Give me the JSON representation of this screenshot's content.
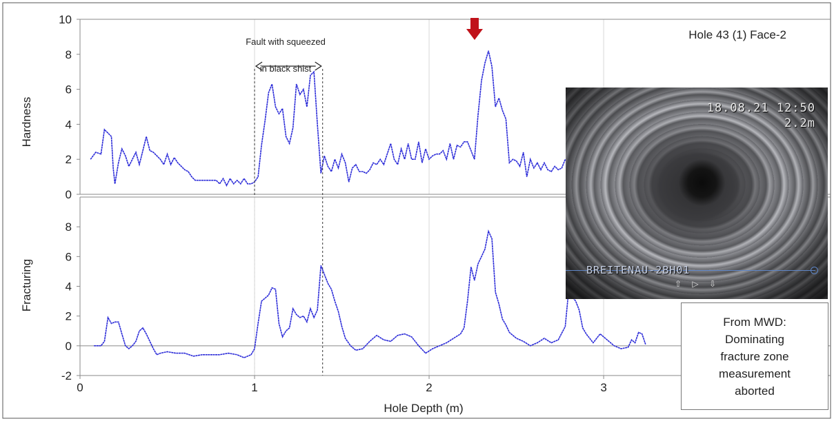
{
  "chart_data": [
    {
      "type": "line",
      "ylabel": "Hardness",
      "ylim": [
        0,
        10
      ],
      "yticks": [
        0,
        2,
        4,
        6,
        8,
        10
      ],
      "annotation_title": "Hole 43 (1) Face-2",
      "fault_label_line1": "Fault with squeezed",
      "fault_label_line2": "in black shist",
      "fault_range": [
        1.0,
        1.39
      ],
      "arrow_marker_x": 2.26,
      "series": [
        {
          "color": "#2a2ad8",
          "points": [
            [
              0.06,
              2.0
            ],
            [
              0.09,
              2.4
            ],
            [
              0.12,
              2.3
            ],
            [
              0.14,
              3.7
            ],
            [
              0.16,
              3.5
            ],
            [
              0.18,
              3.3
            ],
            [
              0.19,
              1.5
            ],
            [
              0.2,
              0.6
            ],
            [
              0.22,
              1.8
            ],
            [
              0.24,
              2.6
            ],
            [
              0.26,
              2.2
            ],
            [
              0.28,
              1.6
            ],
            [
              0.3,
              2.0
            ],
            [
              0.32,
              2.4
            ],
            [
              0.34,
              1.7
            ],
            [
              0.36,
              2.5
            ],
            [
              0.38,
              3.3
            ],
            [
              0.4,
              2.5
            ],
            [
              0.42,
              2.4
            ],
            [
              0.44,
              2.2
            ],
            [
              0.46,
              2.0
            ],
            [
              0.48,
              1.7
            ],
            [
              0.5,
              2.3
            ],
            [
              0.52,
              1.7
            ],
            [
              0.54,
              2.1
            ],
            [
              0.56,
              1.8
            ],
            [
              0.58,
              1.6
            ],
            [
              0.6,
              1.4
            ],
            [
              0.62,
              1.3
            ],
            [
              0.64,
              1.0
            ],
            [
              0.66,
              0.8
            ],
            [
              0.7,
              0.8
            ],
            [
              0.74,
              0.8
            ],
            [
              0.78,
              0.8
            ],
            [
              0.8,
              0.6
            ],
            [
              0.82,
              0.9
            ],
            [
              0.84,
              0.5
            ],
            [
              0.86,
              0.9
            ],
            [
              0.88,
              0.6
            ],
            [
              0.9,
              0.8
            ],
            [
              0.92,
              0.6
            ],
            [
              0.94,
              0.9
            ],
            [
              0.96,
              0.6
            ],
            [
              0.98,
              0.6
            ],
            [
              1.0,
              0.7
            ],
            [
              1.02,
              1.0
            ],
            [
              1.04,
              2.8
            ],
            [
              1.06,
              4.2
            ],
            [
              1.08,
              5.8
            ],
            [
              1.1,
              6.3
            ],
            [
              1.12,
              5.0
            ],
            [
              1.14,
              4.6
            ],
            [
              1.16,
              4.9
            ],
            [
              1.18,
              3.3
            ],
            [
              1.2,
              2.9
            ],
            [
              1.22,
              3.8
            ],
            [
              1.24,
              6.3
            ],
            [
              1.26,
              5.7
            ],
            [
              1.28,
              6.0
            ],
            [
              1.3,
              5.0
            ],
            [
              1.32,
              6.8
            ],
            [
              1.34,
              7.0
            ],
            [
              1.36,
              4.0
            ],
            [
              1.38,
              1.2
            ],
            [
              1.4,
              2.2
            ],
            [
              1.42,
              1.6
            ],
            [
              1.44,
              1.3
            ],
            [
              1.46,
              2.0
            ],
            [
              1.48,
              1.5
            ],
            [
              1.5,
              2.3
            ],
            [
              1.52,
              1.8
            ],
            [
              1.54,
              0.7
            ],
            [
              1.56,
              1.5
            ],
            [
              1.58,
              1.7
            ],
            [
              1.6,
              1.3
            ],
            [
              1.62,
              1.3
            ],
            [
              1.64,
              1.2
            ],
            [
              1.66,
              1.4
            ],
            [
              1.68,
              1.8
            ],
            [
              1.7,
              1.7
            ],
            [
              1.72,
              2.0
            ],
            [
              1.74,
              1.7
            ],
            [
              1.76,
              2.3
            ],
            [
              1.78,
              2.9
            ],
            [
              1.8,
              2.0
            ],
            [
              1.82,
              1.7
            ],
            [
              1.84,
              2.6
            ],
            [
              1.86,
              2.0
            ],
            [
              1.88,
              2.9
            ],
            [
              1.9,
              2.0
            ],
            [
              1.92,
              2.0
            ],
            [
              1.94,
              3.0
            ],
            [
              1.96,
              1.8
            ],
            [
              1.98,
              2.6
            ],
            [
              2.0,
              2.0
            ],
            [
              2.02,
              2.2
            ],
            [
              2.04,
              2.3
            ],
            [
              2.06,
              2.3
            ],
            [
              2.08,
              2.5
            ],
            [
              2.1,
              2.0
            ],
            [
              2.12,
              2.9
            ],
            [
              2.14,
              2.0
            ],
            [
              2.16,
              2.8
            ],
            [
              2.18,
              2.7
            ],
            [
              2.2,
              3.0
            ],
            [
              2.22,
              3.0
            ],
            [
              2.24,
              2.5
            ],
            [
              2.26,
              2.0
            ],
            [
              2.28,
              4.5
            ],
            [
              2.3,
              6.5
            ],
            [
              2.32,
              7.5
            ],
            [
              2.34,
              8.2
            ],
            [
              2.36,
              7.3
            ],
            [
              2.38,
              5.0
            ],
            [
              2.4,
              5.5
            ],
            [
              2.42,
              4.8
            ],
            [
              2.44,
              4.3
            ],
            [
              2.46,
              1.8
            ],
            [
              2.48,
              2.0
            ],
            [
              2.5,
              1.9
            ],
            [
              2.52,
              1.6
            ],
            [
              2.54,
              2.4
            ],
            [
              2.56,
              1.0
            ],
            [
              2.58,
              2.0
            ],
            [
              2.6,
              1.5
            ],
            [
              2.62,
              1.8
            ],
            [
              2.64,
              1.4
            ],
            [
              2.66,
              1.8
            ],
            [
              2.68,
              1.4
            ],
            [
              2.7,
              1.3
            ],
            [
              2.72,
              1.6
            ],
            [
              2.74,
              1.4
            ],
            [
              2.76,
              1.5
            ],
            [
              2.78,
              2.0
            ],
            [
              2.8,
              1.7
            ],
            [
              2.82,
              1.4
            ]
          ]
        }
      ]
    },
    {
      "type": "line",
      "ylabel": "Fracturing",
      "xlabel": "Hole Depth (m)",
      "xlim": [
        0,
        4.3
      ],
      "xticks": [
        0,
        1,
        2,
        3
      ],
      "ylim": [
        -2,
        10
      ],
      "yticks": [
        -2,
        0,
        2,
        4,
        6,
        8
      ],
      "series": [
        {
          "color": "#2a2ad8",
          "points": [
            [
              0.08,
              0.0
            ],
            [
              0.1,
              0.0
            ],
            [
              0.12,
              0.0
            ],
            [
              0.14,
              0.3
            ],
            [
              0.16,
              1.9
            ],
            [
              0.18,
              1.5
            ],
            [
              0.2,
              1.6
            ],
            [
              0.22,
              1.6
            ],
            [
              0.24,
              0.8
            ],
            [
              0.26,
              0.0
            ],
            [
              0.28,
              -0.2
            ],
            [
              0.3,
              0.0
            ],
            [
              0.32,
              0.3
            ],
            [
              0.34,
              1.0
            ],
            [
              0.36,
              1.2
            ],
            [
              0.38,
              0.8
            ],
            [
              0.4,
              0.3
            ],
            [
              0.42,
              -0.2
            ],
            [
              0.44,
              -0.6
            ],
            [
              0.46,
              -0.5
            ],
            [
              0.5,
              -0.4
            ],
            [
              0.55,
              -0.5
            ],
            [
              0.6,
              -0.5
            ],
            [
              0.65,
              -0.7
            ],
            [
              0.7,
              -0.6
            ],
            [
              0.75,
              -0.6
            ],
            [
              0.8,
              -0.6
            ],
            [
              0.85,
              -0.5
            ],
            [
              0.9,
              -0.6
            ],
            [
              0.94,
              -0.8
            ],
            [
              0.98,
              -0.6
            ],
            [
              1.0,
              -0.2
            ],
            [
              1.02,
              1.5
            ],
            [
              1.04,
              3.0
            ],
            [
              1.06,
              3.2
            ],
            [
              1.08,
              3.4
            ],
            [
              1.1,
              3.9
            ],
            [
              1.12,
              3.8
            ],
            [
              1.14,
              1.5
            ],
            [
              1.16,
              0.6
            ],
            [
              1.18,
              1.0
            ],
            [
              1.2,
              1.2
            ],
            [
              1.22,
              2.5
            ],
            [
              1.24,
              2.1
            ],
            [
              1.26,
              1.9
            ],
            [
              1.28,
              2.0
            ],
            [
              1.3,
              1.6
            ],
            [
              1.32,
              2.5
            ],
            [
              1.34,
              1.9
            ],
            [
              1.36,
              2.4
            ],
            [
              1.38,
              5.4
            ],
            [
              1.4,
              4.8
            ],
            [
              1.42,
              4.2
            ],
            [
              1.44,
              3.8
            ],
            [
              1.46,
              3.0
            ],
            [
              1.48,
              2.3
            ],
            [
              1.5,
              1.3
            ],
            [
              1.52,
              0.5
            ],
            [
              1.55,
              0.0
            ],
            [
              1.58,
              -0.3
            ],
            [
              1.62,
              -0.2
            ],
            [
              1.66,
              0.3
            ],
            [
              1.7,
              0.7
            ],
            [
              1.74,
              0.4
            ],
            [
              1.78,
              0.3
            ],
            [
              1.82,
              0.7
            ],
            [
              1.86,
              0.8
            ],
            [
              1.9,
              0.6
            ],
            [
              1.94,
              0.0
            ],
            [
              1.98,
              -0.5
            ],
            [
              2.02,
              -0.2
            ],
            [
              2.06,
              0.0
            ],
            [
              2.1,
              0.2
            ],
            [
              2.14,
              0.5
            ],
            [
              2.18,
              0.8
            ],
            [
              2.2,
              1.2
            ],
            [
              2.22,
              3.0
            ],
            [
              2.24,
              5.3
            ],
            [
              2.26,
              4.4
            ],
            [
              2.28,
              5.5
            ],
            [
              2.3,
              6.0
            ],
            [
              2.32,
              6.5
            ],
            [
              2.34,
              7.7
            ],
            [
              2.36,
              7.2
            ],
            [
              2.38,
              3.6
            ],
            [
              2.4,
              2.8
            ],
            [
              2.42,
              1.8
            ],
            [
              2.44,
              1.4
            ],
            [
              2.46,
              0.9
            ],
            [
              2.5,
              0.5
            ],
            [
              2.54,
              0.3
            ],
            [
              2.58,
              0.0
            ],
            [
              2.62,
              0.2
            ],
            [
              2.66,
              0.5
            ],
            [
              2.7,
              0.2
            ],
            [
              2.74,
              0.4
            ],
            [
              2.78,
              1.3
            ],
            [
              2.8,
              3.8
            ],
            [
              2.82,
              3.3
            ],
            [
              2.84,
              3.0
            ],
            [
              2.86,
              2.4
            ],
            [
              2.88,
              1.2
            ],
            [
              2.9,
              0.8
            ],
            [
              2.94,
              0.2
            ],
            [
              2.98,
              0.8
            ],
            [
              3.02,
              0.4
            ],
            [
              3.06,
              0.0
            ],
            [
              3.1,
              -0.2
            ],
            [
              3.14,
              -0.1
            ],
            [
              3.16,
              0.4
            ],
            [
              3.18,
              0.2
            ],
            [
              3.2,
              0.9
            ],
            [
              3.22,
              0.8
            ],
            [
              3.24,
              0.1
            ]
          ]
        }
      ]
    }
  ],
  "photo": {
    "date_stamp": "18.08.21 12:50",
    "depth_stamp": "2.2m",
    "label": "BREITENAU-2BH01",
    "icons": "⇧ ▷ ⇩"
  },
  "note_box": {
    "line1": "From MWD:",
    "line2": "Dominating",
    "line3": "fracture zone",
    "line4": "measurement",
    "line5": "aborted"
  },
  "colors": {
    "series": "#2a2ad8",
    "marker": "#c0121a",
    "grid": "#d8d8d8",
    "axis": "#888888"
  }
}
